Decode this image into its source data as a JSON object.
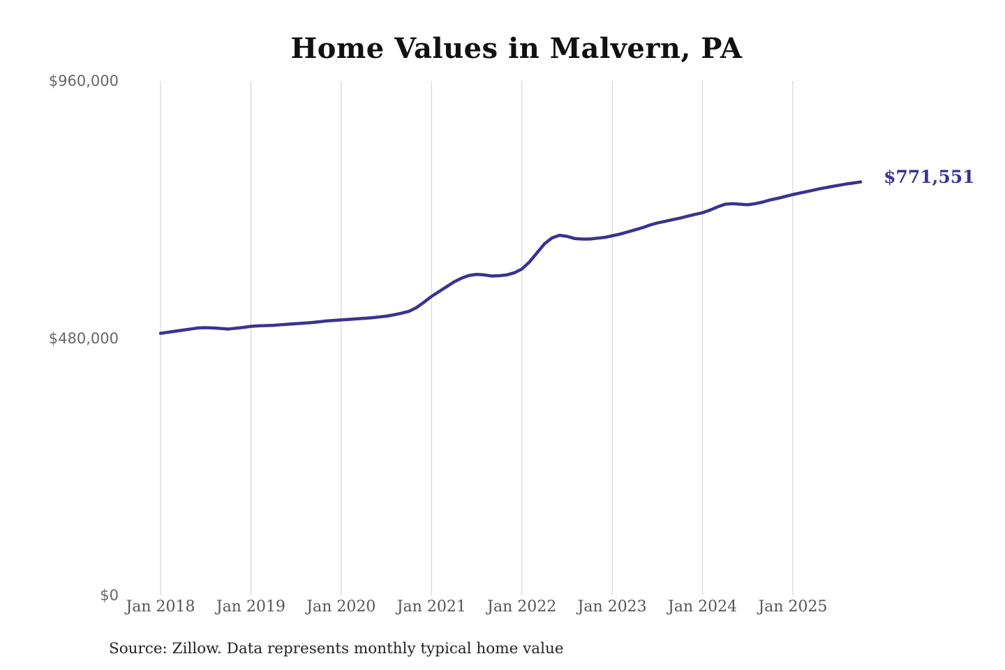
{
  "header": {
    "title": "Home Values in Malvern, PA"
  },
  "footer": {
    "source_note": "Source: Zillow. Data represents monthly typical home value"
  },
  "colors": {
    "accent_line": "#3b3290",
    "last_value_text": "#3b3290",
    "gridline": "#cccccc",
    "title_text": "#111111",
    "y_tick_text": "#666666",
    "x_tick_text": "#555555",
    "source_text": "#222222",
    "background": "#ffffff"
  },
  "chart_data": {
    "type": "line",
    "title": "Home Values in Malvern, PA",
    "unit": "USD",
    "frequency": "monthly",
    "start_month": "Jan 2018",
    "end_month": "Oct 2025",
    "xlabel": "",
    "ylabel": "",
    "ylim": [
      0,
      960000
    ],
    "grid": "vertical yearly gridlines only",
    "legend": "none",
    "x_tick_labels": [
      "Jan 2018",
      "Jan 2019",
      "Jan 2020",
      "Jan 2021",
      "Jan 2022",
      "Jan 2023",
      "Jan 2024",
      "Jan 2025"
    ],
    "y_ticks": [
      {
        "value": 960000,
        "label": "$960,000"
      },
      {
        "value": 480000,
        "label": "$480,000"
      },
      {
        "value": 0,
        "label": "$0"
      }
    ],
    "last_value": 771551,
    "last_value_label": "$771,551",
    "series": [
      {
        "name": "Monthly typical home value",
        "values": [
          489000,
          491000,
          493000,
          495000,
          497000,
          499000,
          499500,
          499000,
          498000,
          497000,
          498500,
          500000,
          502000,
          503000,
          503500,
          504000,
          505000,
          506000,
          507000,
          508000,
          509000,
          510500,
          512000,
          513000,
          514000,
          515000,
          516000,
          517000,
          518000,
          519500,
          521000,
          523500,
          526500,
          530000,
          537000,
          547000,
          558000,
          567000,
          576000,
          585000,
          592000,
          597000,
          599000,
          598000,
          596000,
          596500,
          598000,
          602000,
          609000,
          622000,
          639000,
          656000,
          667000,
          672000,
          670000,
          666000,
          665000,
          665000,
          666500,
          668000,
          671000,
          674000,
          678000,
          682000,
          686000,
          691000,
          695000,
          698000,
          701000,
          704000,
          707500,
          711000,
          714000,
          719000,
          725000,
          730000,
          731000,
          730000,
          729000,
          731000,
          734000,
          738000,
          741000,
          744500,
          748000,
          751000,
          754000,
          757000,
          760000,
          762500,
          765000,
          767500,
          769500,
          771551
        ]
      }
    ]
  }
}
